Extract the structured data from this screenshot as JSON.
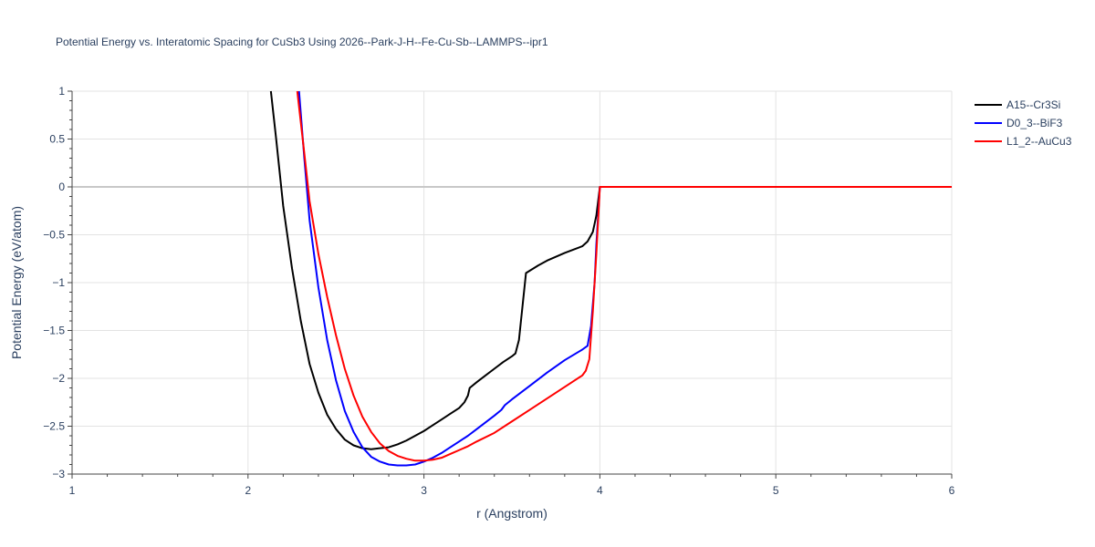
{
  "chart_data": {
    "type": "line",
    "title": "Potential Energy vs. Interatomic Spacing for CuSb3 Using 2026--Park-J-H--Fe-Cu-Sb--LAMMPS--ipr1",
    "xlabel": "r (Angstrom)",
    "ylabel": "Potential Energy (eV/atom)",
    "xlim": [
      1,
      6
    ],
    "ylim": [
      -3,
      1
    ],
    "xticks": [
      1,
      2,
      3,
      4,
      5,
      6
    ],
    "xtick_labels": [
      "1",
      "2",
      "3",
      "4",
      "5",
      "6"
    ],
    "yticks": [
      -3,
      -2.5,
      -2,
      -1.5,
      -1,
      -0.5,
      0,
      0.5,
      1
    ],
    "ytick_labels": [
      "−3",
      "−2.5",
      "−2",
      "−1.5",
      "−1",
      "−0.5",
      "0",
      "0.5",
      "1"
    ],
    "grid": true,
    "legend_position": "top-right",
    "series": [
      {
        "name": "A15--Cr3Si",
        "color": "#000000",
        "x": [
          2.13,
          2.16,
          2.2,
          2.25,
          2.3,
          2.35,
          2.4,
          2.45,
          2.5,
          2.55,
          2.6,
          2.65,
          2.7,
          2.75,
          2.8,
          2.85,
          2.9,
          2.95,
          3.0,
          3.05,
          3.1,
          3.15,
          3.2,
          3.23,
          3.25,
          3.26,
          3.3,
          3.35,
          3.4,
          3.45,
          3.5,
          3.52,
          3.54,
          3.56,
          3.58,
          3.65,
          3.7,
          3.8,
          3.9,
          3.93,
          3.96,
          3.98,
          4.0,
          4.5,
          5.0,
          5.5,
          6.0
        ],
        "y": [
          1.0,
          0.5,
          -0.2,
          -0.85,
          -1.4,
          -1.85,
          -2.15,
          -2.38,
          -2.53,
          -2.64,
          -2.7,
          -2.73,
          -2.74,
          -2.73,
          -2.72,
          -2.69,
          -2.65,
          -2.6,
          -2.55,
          -2.49,
          -2.43,
          -2.37,
          -2.31,
          -2.25,
          -2.18,
          -2.1,
          -2.04,
          -1.97,
          -1.9,
          -1.83,
          -1.77,
          -1.74,
          -1.6,
          -1.25,
          -0.9,
          -0.82,
          -0.77,
          -0.69,
          -0.62,
          -0.57,
          -0.47,
          -0.3,
          0.0,
          0.0,
          0.0,
          0.0,
          0.0
        ]
      },
      {
        "name": "D0_3--BiF3",
        "color": "#0000ff",
        "x": [
          2.29,
          2.32,
          2.35,
          2.4,
          2.45,
          2.5,
          2.55,
          2.6,
          2.65,
          2.7,
          2.75,
          2.8,
          2.85,
          2.9,
          2.95,
          3.0,
          3.05,
          3.1,
          3.15,
          3.2,
          3.25,
          3.3,
          3.35,
          3.4,
          3.44,
          3.46,
          3.5,
          3.6,
          3.7,
          3.8,
          3.9,
          3.93,
          3.95,
          3.97,
          3.98,
          4.0,
          4.5,
          5.0,
          5.5,
          6.0
        ],
        "y": [
          1.0,
          0.3,
          -0.35,
          -1.05,
          -1.6,
          -2.02,
          -2.34,
          -2.56,
          -2.72,
          -2.82,
          -2.87,
          -2.9,
          -2.91,
          -2.91,
          -2.9,
          -2.87,
          -2.83,
          -2.78,
          -2.72,
          -2.66,
          -2.6,
          -2.53,
          -2.46,
          -2.39,
          -2.33,
          -2.28,
          -2.22,
          -2.08,
          -1.94,
          -1.81,
          -1.7,
          -1.66,
          -1.45,
          -1.0,
          -0.6,
          0.0,
          0.0,
          0.0,
          0.0,
          0.0
        ]
      },
      {
        "name": "L1_2--AuCu3",
        "color": "#ff0000",
        "x": [
          2.28,
          2.32,
          2.35,
          2.4,
          2.45,
          2.5,
          2.55,
          2.6,
          2.65,
          2.7,
          2.75,
          2.8,
          2.85,
          2.9,
          2.95,
          3.0,
          3.05,
          3.1,
          3.15,
          3.2,
          3.25,
          3.3,
          3.4,
          3.5,
          3.6,
          3.7,
          3.8,
          3.9,
          3.92,
          3.94,
          3.96,
          3.98,
          4.0,
          4.5,
          5.0,
          5.5,
          6.0
        ],
        "y": [
          1.0,
          0.35,
          -0.15,
          -0.7,
          -1.15,
          -1.55,
          -1.9,
          -2.18,
          -2.4,
          -2.56,
          -2.68,
          -2.76,
          -2.81,
          -2.84,
          -2.86,
          -2.86,
          -2.85,
          -2.83,
          -2.79,
          -2.75,
          -2.71,
          -2.66,
          -2.57,
          -2.45,
          -2.33,
          -2.21,
          -2.09,
          -1.97,
          -1.92,
          -1.8,
          -1.3,
          -0.7,
          0.0,
          0.0,
          0.0,
          0.0,
          0.0
        ]
      }
    ]
  }
}
